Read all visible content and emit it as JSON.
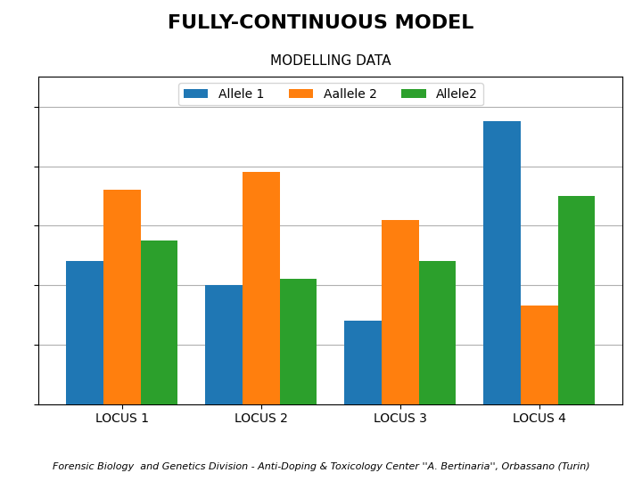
{
  "chart_data": {
    "type": "bar",
    "title": "FULLY-CONTINUOUS MODEL",
    "subtitle": "MODELLING DATA",
    "footer": "Forensic Biology  and Genetics Division - Anti-Doping & Toxicology Center ''A. Bertinaria'', Orbassano (Turin)",
    "categories": [
      "LOCUS 1",
      "LOCUS 2",
      "LOCUS 3",
      "LOCUS 4"
    ],
    "series": [
      {
        "name": "Allele 1",
        "values": [
          48,
          40,
          28,
          95
        ]
      },
      {
        "name": "Aallele 2",
        "values": [
          72,
          78,
          62,
          33
        ]
      },
      {
        "name": "Allele2",
        "values": [
          55,
          42,
          48,
          70
        ]
      }
    ],
    "ylim": [
      0,
      110
    ],
    "yticks": [
      0,
      20,
      40,
      60,
      80,
      100
    ],
    "grid": true,
    "legend": "upper center",
    "tick_labels": "x"
  }
}
